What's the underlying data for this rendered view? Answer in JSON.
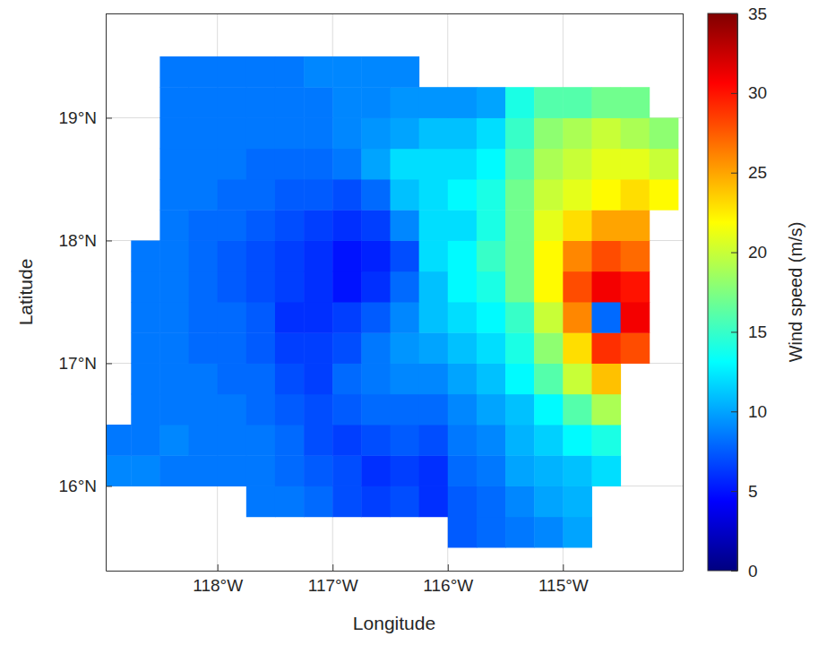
{
  "chart_data": {
    "type": "heatmap",
    "x_label": "Longitude",
    "y_label": "Latitude",
    "colorbar_label": "Wind speed (m/s)",
    "grid": true,
    "xlim": [
      -118.97,
      -113.96
    ],
    "ylim": [
      15.31,
      19.85
    ],
    "xticks": [
      {
        "value": -118,
        "label": "118°W"
      },
      {
        "value": -117,
        "label": "117°W"
      },
      {
        "value": -116,
        "label": "116°W"
      },
      {
        "value": -115,
        "label": "115°W"
      }
    ],
    "yticks": [
      {
        "value": 16,
        "label": "16°N"
      },
      {
        "value": 17,
        "label": "17°N"
      },
      {
        "value": 18,
        "label": "18°N"
      },
      {
        "value": 19,
        "label": "19°N"
      }
    ],
    "zlim": [
      0,
      35
    ],
    "zticks": [
      0,
      5,
      10,
      15,
      20,
      25,
      30,
      35
    ],
    "x": [
      -118.875,
      -118.625,
      -118.375,
      -118.125,
      -117.875,
      -117.625,
      -117.375,
      -117.125,
      -116.875,
      -116.625,
      -116.375,
      -116.125,
      -115.875,
      -115.625,
      -115.375,
      -115.125,
      -114.875,
      -114.625,
      -114.375,
      -114.125
    ],
    "y": [
      15.625,
      15.875,
      16.125,
      16.375,
      16.625,
      16.875,
      17.125,
      17.375,
      17.625,
      17.875,
      18.125,
      18.375,
      18.625,
      18.875,
      19.125,
      19.375
    ],
    "z": [
      [
        null,
        null,
        null,
        null,
        null,
        null,
        null,
        null,
        null,
        null,
        null,
        null,
        7.5,
        8,
        8.5,
        9,
        10,
        null,
        null,
        null
      ],
      [
        null,
        null,
        null,
        null,
        null,
        8.5,
        8.5,
        8,
        7,
        6.5,
        7,
        6,
        7.5,
        8,
        9,
        10,
        10.5,
        null,
        null,
        null
      ],
      [
        9,
        9,
        8.5,
        8.5,
        8.5,
        8.5,
        8,
        7.5,
        7,
        6,
        6.5,
        6,
        8,
        8.5,
        10,
        10.5,
        11,
        12,
        null,
        null
      ],
      [
        8.5,
        8.5,
        9,
        8.5,
        8.5,
        8.5,
        8,
        7,
        6.5,
        7,
        7.5,
        7,
        8.5,
        9,
        10.5,
        11.5,
        13,
        14,
        null,
        null
      ],
      [
        null,
        8.5,
        8.5,
        8.5,
        8.5,
        8,
        7.5,
        7,
        7.5,
        8,
        8,
        8,
        9,
        10,
        11,
        13,
        16,
        19,
        null,
        null
      ],
      [
        null,
        8.5,
        8.5,
        8.5,
        8,
        8,
        7,
        6.5,
        8,
        8.5,
        9,
        9,
        10,
        11,
        13,
        16,
        20,
        24,
        null,
        null
      ],
      [
        null,
        8.5,
        8.5,
        8,
        8,
        7.5,
        6.5,
        6.5,
        7,
        8.5,
        9.5,
        10,
        11,
        12,
        14,
        18,
        23,
        29,
        28,
        null
      ],
      [
        null,
        8.5,
        8.5,
        8,
        8,
        7.5,
        6,
        6,
        6.5,
        7.5,
        9,
        11,
        12,
        13,
        15,
        20,
        26,
        8,
        31,
        null
      ],
      [
        null,
        8.5,
        8.5,
        8,
        7.5,
        7,
        6.5,
        6,
        5,
        6,
        8,
        11,
        13,
        14,
        17,
        22,
        28,
        31,
        30,
        null
      ],
      [
        null,
        8.5,
        8.5,
        8,
        7.5,
        7,
        6.5,
        6,
        5,
        5.5,
        7,
        12,
        13,
        15,
        17,
        22,
        26,
        28,
        27,
        null
      ],
      [
        null,
        null,
        8.5,
        8,
        8,
        7.5,
        7,
        6.5,
        6,
        6.5,
        9,
        12,
        12,
        14,
        17,
        21,
        23,
        25,
        25,
        null
      ],
      [
        null,
        null,
        8.5,
        8.5,
        8,
        8,
        7.5,
        7.5,
        7,
        8,
        11,
        12,
        13,
        14,
        17,
        20,
        21,
        22,
        23,
        22
      ],
      [
        null,
        null,
        8.5,
        8.5,
        8.5,
        8,
        8,
        8,
        8.5,
        10,
        12,
        12,
        12,
        13,
        16,
        19,
        20,
        21,
        21,
        20
      ],
      [
        null,
        null,
        8.5,
        8.5,
        8.5,
        8.5,
        8.5,
        8.5,
        9,
        9.5,
        10,
        11,
        11,
        12,
        15,
        18,
        19,
        20,
        19,
        18
      ],
      [
        null,
        null,
        8.5,
        8.5,
        8.5,
        8.5,
        8.5,
        8.5,
        9,
        9,
        9.5,
        9.5,
        9.5,
        10,
        14,
        16,
        16,
        17,
        17,
        null
      ],
      [
        null,
        null,
        8.5,
        8.5,
        8.5,
        8.5,
        8.5,
        9,
        9,
        9,
        9,
        null,
        null,
        null,
        null,
        null,
        null,
        null,
        null,
        null
      ]
    ]
  }
}
